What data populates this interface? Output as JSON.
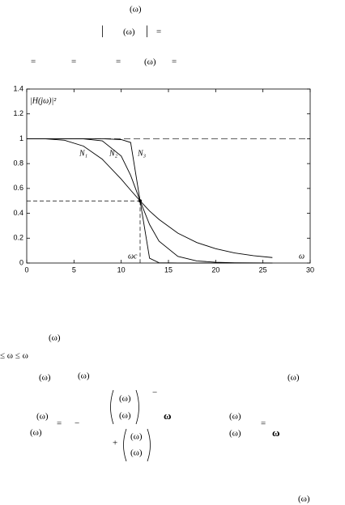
{
  "page_text": [
    "(ω)",
    "|",
    "(ω)",
    "|",
    "=",
    "=",
    "=",
    "=",
    "(ω)",
    "=",
    "(ω)",
    "≤ ω ≤ ω",
    "(ω)",
    "(ω)",
    "(ω)",
    "(ω)",
    "(ω)",
    "=",
    "−",
    "(ω)",
    "(ω)",
    "−",
    "ω",
    "+",
    "(ω)",
    "(ω)",
    "(ω)",
    "(ω)",
    "=",
    "ω",
    "(ω)"
  ],
  "chart_data": {
    "type": "line",
    "y_label": "|H(jω)|²",
    "x_label": "ω",
    "cutoff_label": "ωc",
    "x": [
      0,
      2,
      4,
      6,
      8,
      10,
      11,
      12,
      13,
      14,
      16,
      18,
      20,
      22,
      24,
      26
    ],
    "series": [
      {
        "name": "N₁",
        "color": "#000000",
        "values": [
          1,
          0.999,
          0.988,
          0.941,
          0.835,
          0.675,
          0.586,
          0.5,
          0.419,
          0.351,
          0.24,
          0.165,
          0.115,
          0.081,
          0.059,
          0.044
        ]
      },
      {
        "name": "N₂",
        "color": "#000000",
        "values": [
          1,
          1,
          1,
          0.999,
          0.983,
          0.861,
          0.705,
          0.5,
          0.31,
          0.176,
          0.053,
          0.017,
          0.006,
          0.002,
          0.001,
          0
        ]
      },
      {
        "name": "N₃",
        "color": "#000000",
        "values": [
          1,
          1,
          1,
          1,
          1,
          0.993,
          0.97,
          0.5,
          0.039,
          0.002,
          0,
          0,
          0,
          0,
          0,
          0
        ]
      }
    ],
    "hline": 1,
    "cutoff": [
      12,
      0.5
    ],
    "xlim": [
      0,
      30
    ],
    "ylim": [
      0,
      1.4
    ],
    "xticks": [
      0,
      5,
      10,
      15,
      20,
      25,
      30
    ],
    "yticks": [
      0,
      0.2,
      0.4,
      0.6,
      0.8,
      1,
      1.2,
      1.4
    ]
  }
}
